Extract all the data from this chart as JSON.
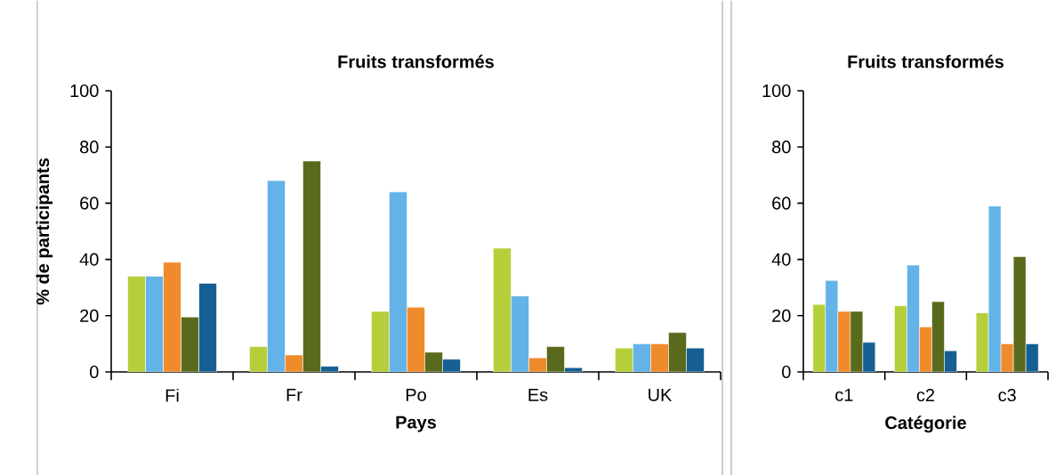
{
  "chart_data": [
    {
      "type": "bar",
      "title": "Fruits transformés",
      "xlabel": "Pays",
      "ylabel": "% de participants",
      "categories": [
        "Fi",
        "Fr",
        "Po",
        "Es",
        "UK"
      ],
      "ylim": [
        0,
        100
      ],
      "yticks": [
        0,
        20,
        40,
        60,
        80,
        100
      ],
      "series": [
        {
          "color": "#b5cf3a",
          "values": [
            34,
            9,
            21.5,
            44,
            8.5
          ]
        },
        {
          "color": "#63b3e8",
          "values": [
            34,
            68,
            64,
            27,
            10
          ]
        },
        {
          "color": "#f08b2b",
          "values": [
            39,
            6,
            23,
            5,
            10
          ]
        },
        {
          "color": "#5a6a1c",
          "values": [
            19.5,
            75,
            7,
            9,
            14
          ]
        },
        {
          "color": "#155f93",
          "values": [
            31.5,
            2,
            4.5,
            1.5,
            8.5
          ]
        }
      ]
    },
    {
      "type": "bar",
      "title": "Fruits transformés",
      "xlabel": "Catégorie",
      "categories": [
        "c1",
        "c2",
        "c3"
      ],
      "ylim": [
        0,
        100
      ],
      "yticks": [
        0,
        20,
        40,
        60,
        80,
        100
      ],
      "series": [
        {
          "color": "#b5cf3a",
          "values": [
            24,
            23.5,
            21
          ]
        },
        {
          "color": "#63b3e8",
          "values": [
            32.5,
            38,
            59
          ]
        },
        {
          "color": "#f08b2b",
          "values": [
            21.5,
            16,
            10
          ]
        },
        {
          "color": "#5a6a1c",
          "values": [
            21.5,
            25,
            41
          ]
        },
        {
          "color": "#155f93",
          "values": [
            10.5,
            7.5,
            10
          ]
        }
      ]
    }
  ]
}
